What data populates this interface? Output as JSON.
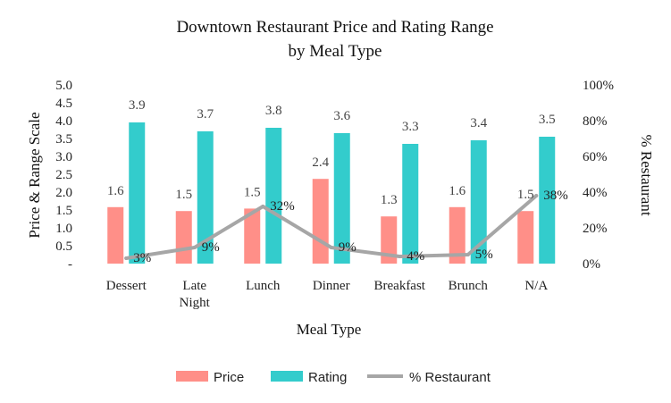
{
  "chart_data": {
    "type": "bar",
    "title_line1": "Downtown Restaurant Price and Rating Range",
    "title_line2": "by Meal Type",
    "xlabel": "Meal Type",
    "ylabel": "Price & Range Scale",
    "y2label": "% Restaurant",
    "categories": [
      [
        "Dessert"
      ],
      [
        "Late",
        "Night"
      ],
      [
        "Lunch"
      ],
      [
        "Dinner"
      ],
      [
        "Breakfast"
      ],
      [
        "Brunch"
      ],
      [
        "N/A"
      ]
    ],
    "ylim": [
      0,
      5
    ],
    "yticks": [
      "-",
      "0.5",
      "1.0",
      "1.5",
      "2.0",
      "2.5",
      "3.0",
      "3.5",
      "4.0",
      "4.5",
      "5.0"
    ],
    "y2lim": [
      0,
      100
    ],
    "y2ticks": [
      "0%",
      "20%",
      "40%",
      "60%",
      "80%",
      "100%"
    ],
    "series": [
      {
        "name": "Price",
        "kind": "bar",
        "color": "#FF8F88",
        "values": [
          1.58,
          1.47,
          1.54,
          2.37,
          1.32,
          1.58,
          1.47
        ],
        "labels": [
          "1.6",
          "1.5",
          "1.5",
          "2.4",
          "1.3",
          "1.6",
          "1.5"
        ]
      },
      {
        "name": "Rating",
        "kind": "bar",
        "color": "#33CCCC",
        "values": [
          3.95,
          3.7,
          3.8,
          3.65,
          3.35,
          3.45,
          3.55
        ],
        "labels": [
          "3.9",
          "3.7",
          "3.8",
          "3.6",
          "3.3",
          "3.4",
          "3.5"
        ]
      },
      {
        "name": "% Restaurant",
        "kind": "line",
        "axis": "secondary",
        "color": "#A6A6A6",
        "values": [
          3,
          9,
          32,
          9,
          4,
          5,
          38
        ],
        "labels": [
          "3%",
          "9%",
          "32%",
          "9%",
          "4%",
          "5%",
          "38%"
        ]
      }
    ],
    "legend_position": "bottom",
    "grid": false
  }
}
